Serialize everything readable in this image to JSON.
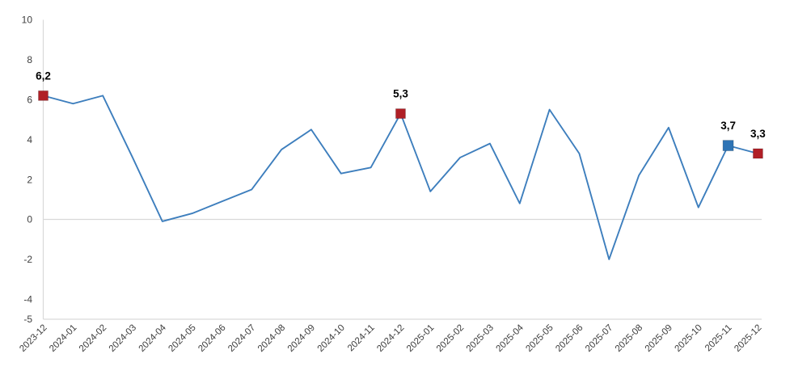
{
  "chart_data": {
    "type": "line",
    "title": "",
    "xlabel": "",
    "ylabel": "",
    "categories": [
      "2023-12",
      "2024-01",
      "2024-02",
      "2024-03",
      "2024-04",
      "2024-05",
      "2024-06",
      "2024-07",
      "2024-08",
      "2024-09",
      "2024-10",
      "2024-11",
      "2024-12",
      "2025-01",
      "2025-02",
      "2025-03",
      "2025-04",
      "2025-05",
      "2025-06",
      "2025-07",
      "2025-08",
      "2025-09",
      "2025-10",
      "2025-11",
      "2025-12"
    ],
    "values": [
      6.2,
      5.8,
      6.2,
      3.1,
      -0.1,
      0.3,
      0.9,
      1.5,
      3.5,
      4.5,
      2.3,
      2.6,
      5.3,
      1.4,
      3.1,
      3.8,
      0.8,
      5.5,
      3.3,
      -2.0,
      2.2,
      4.6,
      0.6,
      3.7,
      3.3
    ],
    "ylim": [
      -5,
      10
    ],
    "yticks": [
      10,
      8,
      6,
      4,
      2,
      0,
      -2,
      -4,
      -5
    ],
    "grid": "zero-baseline-only",
    "legend": "none",
    "line_color": "#3d7ebd",
    "axis_color": "#d9d9d9",
    "tick_color": "#404040",
    "data_label_color": "#000000",
    "highlighted_points": [
      {
        "category": "2023-12",
        "index": 0,
        "value": 6.2,
        "label": "6,2",
        "marker_color": "#b01f26",
        "marker_size": 12
      },
      {
        "category": "2024-12",
        "index": 12,
        "value": 5.3,
        "label": "5,3",
        "marker_color": "#b01f26",
        "marker_size": 12
      },
      {
        "category": "2025-11",
        "index": 23,
        "value": 3.7,
        "label": "3,7",
        "marker_color": "#2e74b5",
        "marker_size": 13
      },
      {
        "category": "2025-12",
        "index": 24,
        "value": 3.3,
        "label": "3,3",
        "marker_color": "#b01f26",
        "marker_size": 12
      }
    ]
  }
}
